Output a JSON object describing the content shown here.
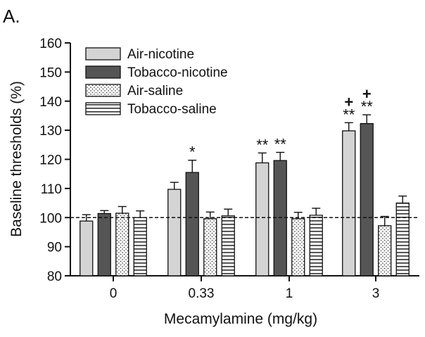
{
  "panel_label": "A.",
  "colors": {
    "air_nicotine": "#d4d4d4",
    "tobacco_nicotine": "#555555",
    "axis": "#111111"
  },
  "chart_data": {
    "type": "bar",
    "title": "",
    "xlabel": "Mecamylamine (mg/kg)",
    "ylabel": "Baseline thresholds (%)",
    "ylim": [
      80,
      160
    ],
    "yticks": [
      80,
      90,
      100,
      110,
      120,
      130,
      140,
      150,
      160
    ],
    "categories": [
      "0",
      "0.33",
      "1",
      "3"
    ],
    "reference_line": 100,
    "grid": false,
    "legend_position": "top-left",
    "series": [
      {
        "name": "Air-nicotine",
        "pattern": "solid-light",
        "values": [
          98.8,
          109.7,
          118.8,
          129.8
        ],
        "errors": [
          2.2,
          2.4,
          3.4,
          2.8
        ],
        "annotations": [
          "",
          "",
          "**",
          "**"
        ],
        "annotations_top": [
          "",
          "",
          "",
          "+"
        ]
      },
      {
        "name": "Tobacco-nicotine",
        "pattern": "solid-dark",
        "values": [
          101.4,
          115.5,
          119.6,
          132.3
        ],
        "errors": [
          1.0,
          4.2,
          2.8,
          3.0
        ],
        "annotations": [
          "",
          "*",
          "**",
          "**"
        ],
        "annotations_top": [
          "",
          "",
          "",
          "+"
        ]
      },
      {
        "name": "Air-saline",
        "pattern": "dots",
        "values": [
          101.5,
          99.6,
          99.6,
          97.2
        ],
        "errors": [
          2.3,
          2.3,
          2.2,
          3.2
        ],
        "annotations": [
          "",
          "",
          "",
          ""
        ],
        "annotations_top": [
          "",
          "",
          "",
          ""
        ]
      },
      {
        "name": "Tobacco-saline",
        "pattern": "horizontal-lines",
        "values": [
          100.0,
          100.6,
          100.8,
          105.0
        ],
        "errors": [
          2.3,
          2.3,
          2.4,
          2.4
        ],
        "annotations": [
          "",
          "",
          "",
          ""
        ],
        "annotations_top": [
          "",
          "",
          "",
          ""
        ]
      }
    ]
  }
}
